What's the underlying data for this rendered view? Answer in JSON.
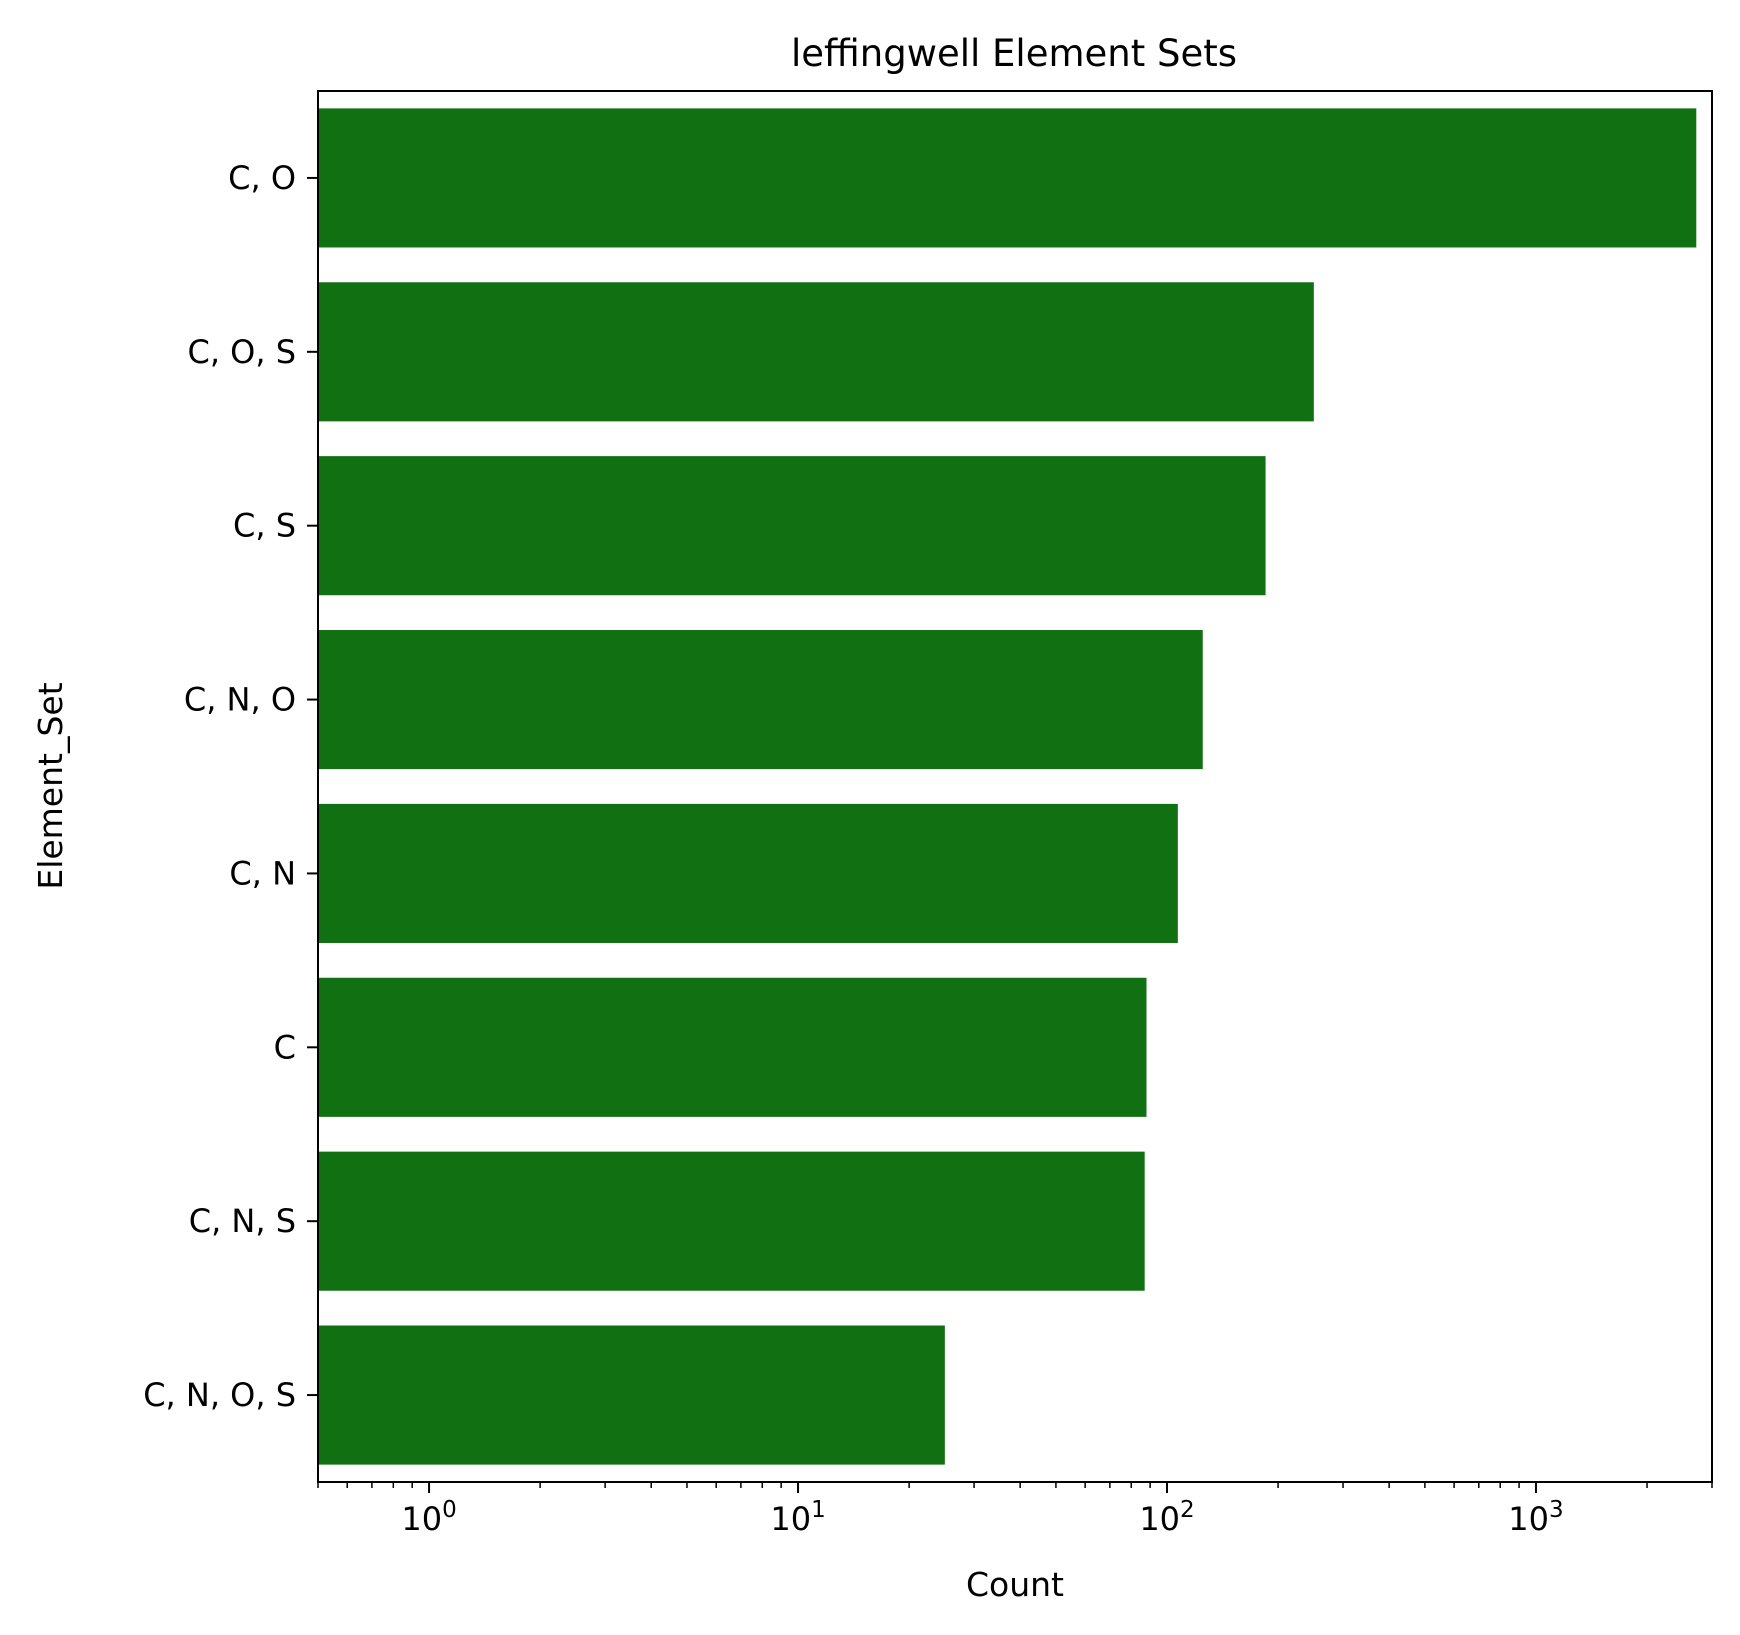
{
  "chart_data": {
    "type": "bar",
    "orientation": "horizontal",
    "title": "leffingwell Element Sets",
    "xlabel": "Count",
    "ylabel": "Element_Set",
    "xscale": "log",
    "xlim": [
      0.5,
      3000
    ],
    "x_ticks": [
      {
        "value": 1,
        "base": "10",
        "exp": "0"
      },
      {
        "value": 10,
        "base": "10",
        "exp": "1"
      },
      {
        "value": 100,
        "base": "10",
        "exp": "2"
      },
      {
        "value": 1000,
        "base": "10",
        "exp": "3"
      }
    ],
    "categories": [
      "C, O",
      "C, O, S",
      "C, S",
      "C, N, O",
      "C, N",
      "C",
      "C, N, S",
      "C, N, O, S"
    ],
    "values": [
      2720,
      250,
      185,
      125,
      107,
      88,
      87,
      25
    ],
    "bar_color": "#117011",
    "grid": false,
    "legend": "none"
  }
}
